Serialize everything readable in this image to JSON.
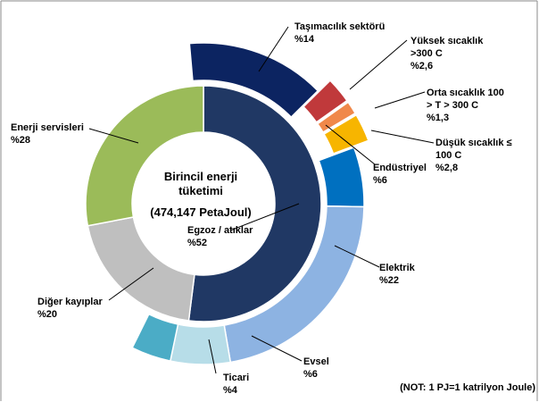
{
  "chart_data": {
    "type": "sunburst",
    "center_title": [
      "Birincil enerji",
      "tüketimi"
    ],
    "center_subtitle": "(474,147 PetaJoul)",
    "note": "(NOT: 1 PJ=1 katrilyon Joule)",
    "rings": [
      {
        "categories": [
          "Egzoz / atıklar",
          "Diğer kayıplar",
          "Enerji servisleri"
        ],
        "values": [
          52,
          20,
          28
        ],
        "value_labels": [
          "%52",
          "%20",
          "%28"
        ],
        "colors": [
          "#203864",
          "#bfbfbf",
          "#9bbb59"
        ],
        "exploded": [
          false,
          false,
          false
        ]
      },
      {
        "categories": [
          "Taşımacılık sektörü",
          "Yüksek sıcaklık >300 C",
          "Orta sıcaklık 100 > T > 300 C",
          "Düşük sıcaklık ≤ 100 C",
          "Endüstriyel",
          "Elektrik",
          "Evsel",
          "Ticari"
        ],
        "values": [
          14,
          2.6,
          1.3,
          2.8,
          6,
          22,
          6,
          4
        ],
        "value_labels": [
          "%14",
          "%2,6",
          "%1,3",
          "%2,8",
          "%6",
          "%22",
          "%6",
          "%4"
        ],
        "colors": [
          "#0c2461",
          "#c0393b",
          "#f0884a",
          "#f7b500",
          "#0070c0",
          "#8db3e2",
          "#b7dde8",
          "#4bacc6"
        ],
        "exploded": [
          false,
          true,
          true,
          true,
          false,
          false,
          false,
          false
        ]
      }
    ]
  }
}
